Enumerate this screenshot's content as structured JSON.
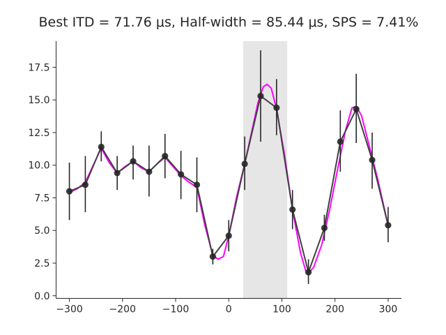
{
  "chart_data": {
    "type": "line",
    "title": "Best ITD = 71.76 μs, Half-width = 85.44 μs, SPS = 7.41%",
    "xlabel": "",
    "ylabel": "",
    "xlim": [
      -325,
      325
    ],
    "ylim": [
      -0.2,
      19.5
    ],
    "xticks": [
      -300,
      -200,
      -100,
      0,
      100,
      200,
      300
    ],
    "xtick_labels": [
      "−300",
      "−200",
      "−100",
      "0",
      "100",
      "200",
      "300"
    ],
    "yticks": [
      0.0,
      2.5,
      5.0,
      7.5,
      10.0,
      12.5,
      15.0,
      17.5
    ],
    "ytick_labels": [
      "0.0",
      "2.5",
      "5.0",
      "7.5",
      "10.0",
      "12.5",
      "15.0",
      "17.5"
    ],
    "grid": false,
    "shaded_region": {
      "x_start": 27,
      "x_end": 110,
      "color": "#e6e6e6"
    },
    "series": [
      {
        "style": "data-with-errorbars",
        "color": "#404040",
        "x": [
          -300,
          -270,
          -240,
          -210,
          -180,
          -150,
          -120,
          -90,
          -60,
          -30,
          0,
          30,
          60,
          90,
          120,
          150,
          180,
          210,
          240,
          270,
          300
        ],
        "y": [
          8.0,
          8.5,
          11.4,
          9.4,
          10.3,
          9.5,
          10.7,
          9.3,
          8.5,
          3.0,
          4.6,
          10.1,
          15.3,
          14.4,
          6.6,
          1.8,
          5.2,
          11.8,
          14.3,
          10.4,
          5.4
        ],
        "err_low": [
          5.8,
          6.4,
          10.3,
          8.1,
          8.9,
          7.6,
          9.0,
          7.4,
          6.4,
          2.4,
          3.4,
          8.1,
          11.8,
          12.3,
          5.1,
          0.9,
          4.2,
          9.5,
          11.7,
          8.2,
          4.1
        ],
        "err_high": [
          10.2,
          10.7,
          12.6,
          10.7,
          11.5,
          11.5,
          12.4,
          11.1,
          10.6,
          3.6,
          5.8,
          12.2,
          18.8,
          16.6,
          8.1,
          2.8,
          6.2,
          14.2,
          17.0,
          12.5,
          6.8
        ]
      },
      {
        "style": "smooth-fit",
        "color": "#ff00ff",
        "x": [
          -300,
          -285,
          -270,
          -255,
          -240,
          -225,
          -210,
          -195,
          -180,
          -165,
          -150,
          -135,
          -120,
          -105,
          -90,
          -75,
          -60,
          -45,
          -30,
          -20,
          -10,
          0,
          15,
          30,
          45,
          55,
          65,
          72,
          80,
          90,
          105,
          120,
          135,
          145,
          150,
          160,
          175,
          190,
          205,
          220,
          232,
          240,
          250,
          265,
          280,
          300
        ],
        "y": [
          7.9,
          8.2,
          8.7,
          10.0,
          11.3,
          10.2,
          9.4,
          9.9,
          10.3,
          9.8,
          9.5,
          10.1,
          10.6,
          9.9,
          9.2,
          8.7,
          8.3,
          5.4,
          3.1,
          2.8,
          3.0,
          4.6,
          7.6,
          10.1,
          12.9,
          14.8,
          16.0,
          16.2,
          15.9,
          14.3,
          10.8,
          6.6,
          3.3,
          1.9,
          1.7,
          2.2,
          3.9,
          6.6,
          9.7,
          12.7,
          14.4,
          14.5,
          13.8,
          11.4,
          9.0,
          5.4
        ]
      }
    ]
  }
}
